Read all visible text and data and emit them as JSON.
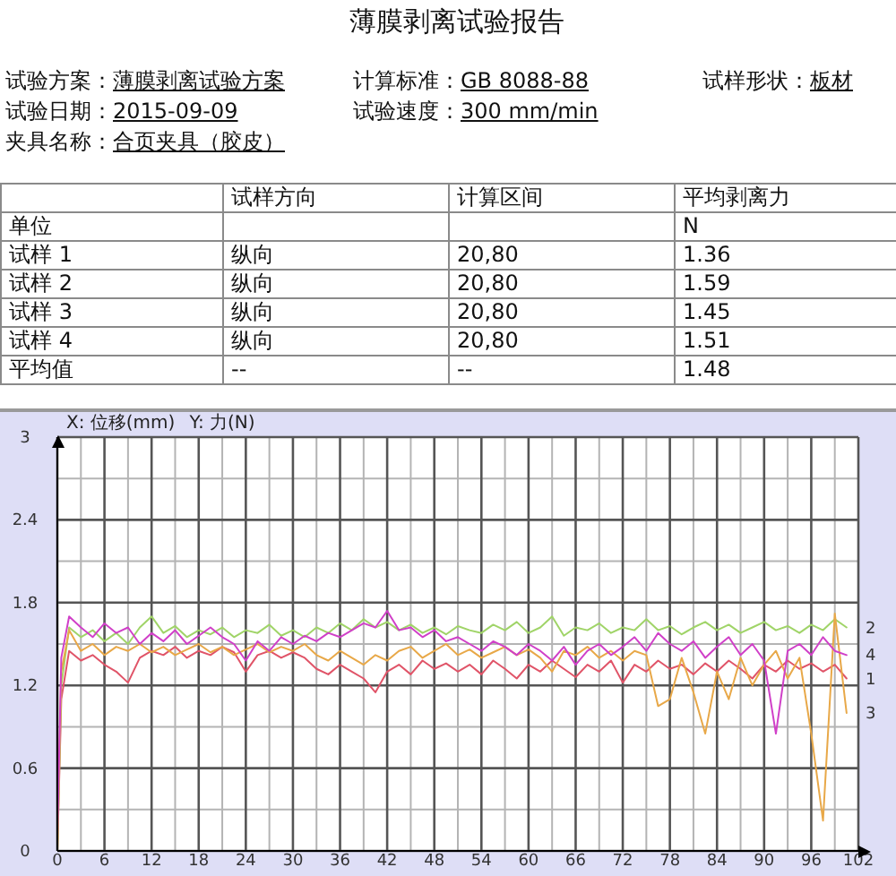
{
  "chart_data": {
    "type": "line",
    "title": "薄膜剥离试验报告",
    "xlabel": "X: 位移(mm)",
    "ylabel": "Y: 力(N)",
    "annotations": [
      "试验方案：薄膜剥离试验方案",
      "计算标准：GB 8088-88",
      "试样形状：板材",
      "试验日期：2015-09-09",
      "试验速度：300 mm/min",
      "夹具名称：合页夹具（胶皮）",
      "试样方向",
      "计算区间",
      "平均剥离力",
      "单位",
      "N",
      "试样 1",
      "纵向",
      "20,80",
      "1.36",
      "试样 2",
      "纵向",
      "20,80",
      "1.59",
      "试样 3",
      "纵向",
      "20,80",
      "1.45",
      "试样 4",
      "纵向",
      "20,80",
      "1.51",
      "平均值",
      "--",
      "--",
      "1.48"
    ],
    "x": [
      0,
      0.5,
      1.5,
      3,
      4.5,
      6,
      7.5,
      9,
      10.5,
      12,
      13.5,
      15,
      16.5,
      18,
      19.5,
      21,
      22.5,
      24,
      25.5,
      27,
      28.5,
      30,
      31.5,
      33,
      34.5,
      36,
      37.5,
      39,
      40.5,
      42,
      43.5,
      45,
      46.5,
      48,
      49.5,
      51,
      52.5,
      54,
      55.5,
      57,
      58.5,
      60,
      61.5,
      63,
      64.5,
      66,
      67.5,
      69,
      70.5,
      72,
      73.5,
      75,
      76.5,
      78,
      79.5,
      81,
      82.5,
      84,
      85.5,
      87,
      88.5,
      90,
      91.5,
      93,
      94.5,
      96,
      97.5,
      99,
      100.5
    ],
    "series": [
      {
        "name": "1",
        "color": "#e05468",
        "values": [
          0,
          1.1,
          1.45,
          1.38,
          1.42,
          1.35,
          1.3,
          1.22,
          1.4,
          1.45,
          1.42,
          1.48,
          1.4,
          1.45,
          1.42,
          1.48,
          1.44,
          1.3,
          1.42,
          1.45,
          1.4,
          1.44,
          1.4,
          1.32,
          1.28,
          1.35,
          1.3,
          1.25,
          1.15,
          1.3,
          1.35,
          1.28,
          1.38,
          1.32,
          1.36,
          1.3,
          1.35,
          1.28,
          1.38,
          1.32,
          1.25,
          1.35,
          1.3,
          1.38,
          1.32,
          1.26,
          1.35,
          1.3,
          1.38,
          1.22,
          1.35,
          1.3,
          1.38,
          1.32,
          1.35,
          1.28,
          1.36,
          1.3,
          1.38,
          1.32,
          1.25,
          1.35,
          1.3,
          1.38,
          1.32,
          1.36,
          1.3,
          1.35,
          1.25
        ]
      },
      {
        "name": "2",
        "color": "#a0d468",
        "values": [
          0,
          1.2,
          1.62,
          1.55,
          1.6,
          1.52,
          1.58,
          1.5,
          1.62,
          1.7,
          1.58,
          1.63,
          1.55,
          1.6,
          1.57,
          1.62,
          1.55,
          1.6,
          1.58,
          1.64,
          1.56,
          1.6,
          1.55,
          1.62,
          1.58,
          1.65,
          1.6,
          1.68,
          1.62,
          1.66,
          1.6,
          1.64,
          1.58,
          1.62,
          1.57,
          1.63,
          1.6,
          1.58,
          1.64,
          1.6,
          1.66,
          1.58,
          1.62,
          1.7,
          1.56,
          1.62,
          1.6,
          1.65,
          1.58,
          1.62,
          1.6,
          1.68,
          1.6,
          1.63,
          1.57,
          1.62,
          1.66,
          1.6,
          1.64,
          1.58,
          1.62,
          1.66,
          1.6,
          1.63,
          1.58,
          1.64,
          1.6,
          1.68,
          1.62
        ]
      },
      {
        "name": "3",
        "color": "#e8a848",
        "values": [
          0,
          1.3,
          1.6,
          1.45,
          1.5,
          1.42,
          1.48,
          1.45,
          1.5,
          1.44,
          1.48,
          1.42,
          1.46,
          1.5,
          1.44,
          1.48,
          1.42,
          1.46,
          1.5,
          1.44,
          1.48,
          1.45,
          1.5,
          1.42,
          1.38,
          1.45,
          1.4,
          1.35,
          1.42,
          1.38,
          1.45,
          1.48,
          1.4,
          1.45,
          1.5,
          1.42,
          1.46,
          1.4,
          1.44,
          1.48,
          1.42,
          1.46,
          1.4,
          1.3,
          1.45,
          1.42,
          1.48,
          1.4,
          1.45,
          1.38,
          1.45,
          1.42,
          1.05,
          1.1,
          1.4,
          1.15,
          0.85,
          1.3,
          1.1,
          1.4,
          1.2,
          1.35,
          1.45,
          1.25,
          1.4,
          0.85,
          0.22,
          1.72,
          1.0
        ]
      },
      {
        "name": "4",
        "color": "#d040c8",
        "values": [
          0.1,
          1.4,
          1.7,
          1.62,
          1.55,
          1.65,
          1.58,
          1.62,
          1.5,
          1.58,
          1.52,
          1.6,
          1.5,
          1.56,
          1.62,
          1.55,
          1.5,
          1.38,
          1.52,
          1.45,
          1.55,
          1.5,
          1.56,
          1.52,
          1.58,
          1.55,
          1.6,
          1.65,
          1.62,
          1.74,
          1.6,
          1.62,
          1.55,
          1.6,
          1.52,
          1.55,
          1.5,
          1.45,
          1.52,
          1.48,
          1.42,
          1.5,
          1.45,
          1.38,
          1.48,
          1.35,
          1.45,
          1.5,
          1.42,
          1.48,
          1.55,
          1.45,
          1.58,
          1.5,
          1.45,
          1.52,
          1.4,
          1.48,
          1.55,
          1.42,
          1.5,
          1.38,
          0.85,
          1.45,
          1.5,
          1.42,
          1.55,
          1.45,
          1.42
        ]
      }
    ],
    "xlim": [
      0,
      102
    ],
    "xticks": [
      0,
      {
        "value": 3,
        "label": null
      },
      6,
      {
        "value": 9,
        "label": null
      },
      12,
      {
        "value": 15,
        "label": null
      },
      18,
      {
        "value": 21,
        "label": null
      },
      24,
      {
        "value": 27,
        "label": null
      },
      30,
      {
        "value": 33,
        "label": null
      },
      36,
      {
        "value": 39,
        "label": null
      },
      42,
      {
        "value": 45,
        "label": null
      },
      48,
      {
        "value": 51,
        "label": null
      },
      54,
      {
        "value": 57,
        "label": null
      },
      60,
      {
        "value": 63,
        "label": null
      },
      66,
      {
        "value": 69,
        "label": null
      },
      72,
      {
        "value": 75,
        "label": null
      },
      78,
      {
        "value": 81,
        "label": null
      },
      84,
      {
        "value": 87,
        "label": null
      },
      90,
      {
        "value": 93,
        "label": null
      },
      96,
      {
        "value": 99,
        "label": null
      },
      102
    ],
    "ylim": [
      0,
      3
    ],
    "yticks": [
      0,
      {
        "value": 0.3,
        "label": null
      },
      0.6,
      {
        "value": 0.9,
        "label": null
      },
      1.2,
      {
        "value": 1.5,
        "label": null
      },
      1.8,
      {
        "value": 2.1,
        "label": null
      },
      2.4,
      {
        "value": 2.7,
        "label": null
      },
      3
    ],
    "grid": true
  }
}
